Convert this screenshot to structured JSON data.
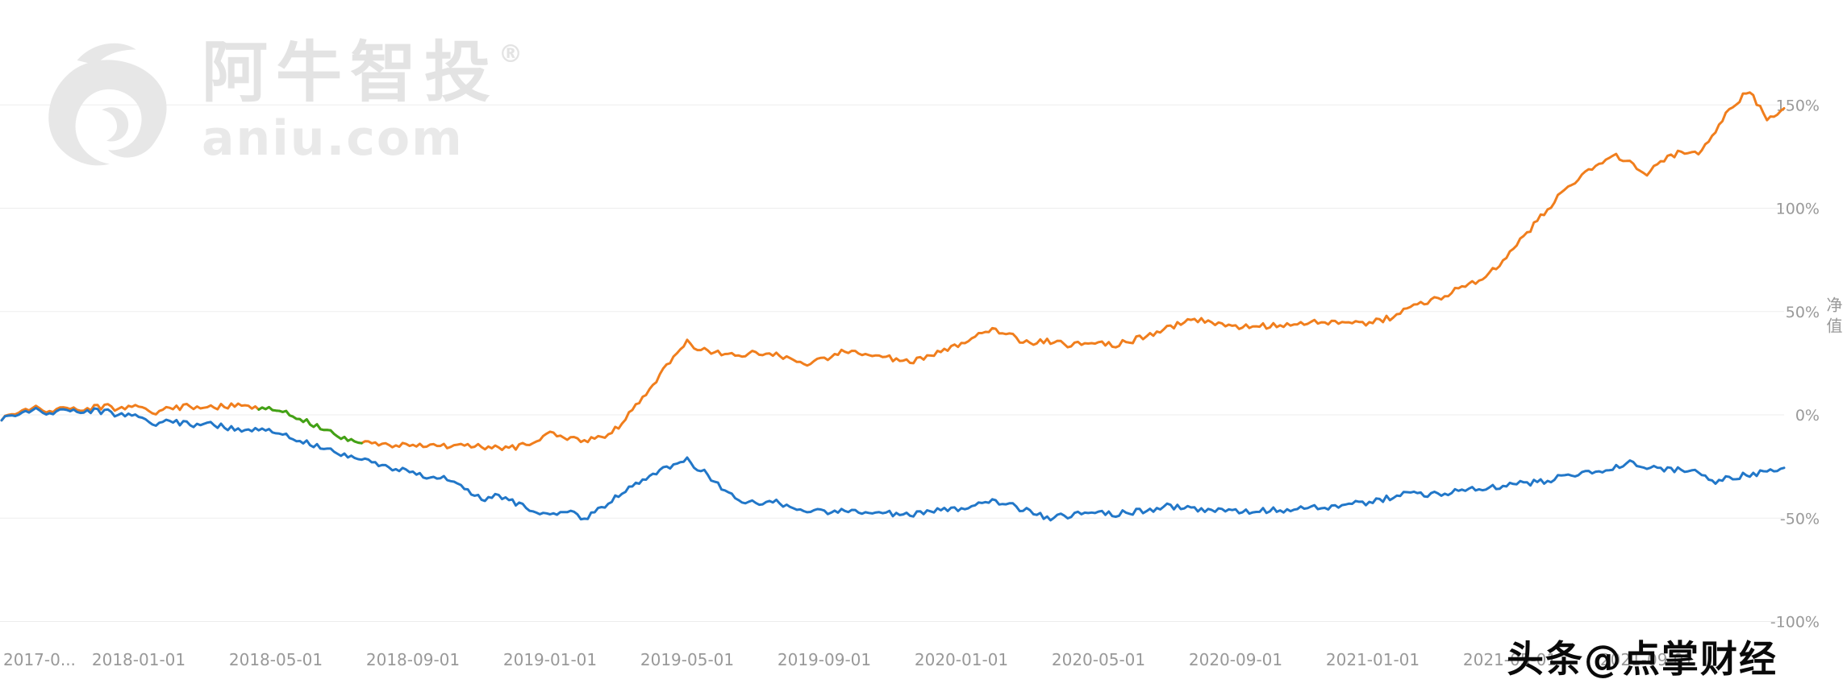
{
  "brand_watermark": {
    "name": "阿牛智投",
    "registered_mark": "®",
    "domain": "aniu.com"
  },
  "source_watermark": {
    "text": "头条@点掌财经"
  },
  "chart_data": {
    "type": "line",
    "title": "",
    "xlabel": "",
    "ylabel": "净值",
    "grid": true,
    "legend_position": "none",
    "y_axis": {
      "unit": "%",
      "range": [
        -100,
        150
      ],
      "ticks": [
        {
          "value": 150,
          "label": "150%"
        },
        {
          "value": 100,
          "label": "100%"
        },
        {
          "value": 50,
          "label": "50%"
        },
        {
          "value": 0,
          "label": "0%"
        },
        {
          "value": -50,
          "label": "-50%"
        },
        {
          "value": -100,
          "label": "-100%"
        }
      ]
    },
    "x_axis": {
      "start": "2017-09",
      "span_months": 52,
      "ticks": [
        {
          "month": 0,
          "label": "2017-0..."
        },
        {
          "month": 4,
          "label": "2018-01-01"
        },
        {
          "month": 8,
          "label": "2018-05-01"
        },
        {
          "month": 12,
          "label": "2018-09-01"
        },
        {
          "month": 16,
          "label": "2019-01-01"
        },
        {
          "month": 20,
          "label": "2019-05-01"
        },
        {
          "month": 24,
          "label": "2019-09-01"
        },
        {
          "month": 28,
          "label": "2020-01-01"
        },
        {
          "month": 32,
          "label": "2020-05-01"
        },
        {
          "month": 36,
          "label": "2020-09-01"
        },
        {
          "month": 40,
          "label": "2021-01-01"
        },
        {
          "month": 44,
          "label": "2021-05-01"
        },
        {
          "month": 48,
          "label": "2021-09-01"
        }
      ]
    },
    "series": [
      {
        "key": "strategy-net-value",
        "color": "#f07e1d",
        "x_start_month": 0,
        "x_step_months": 0.5,
        "jitter": 1.4,
        "values": [
          -2,
          1,
          3,
          2,
          3.5,
          3,
          4,
          3,
          4,
          1.5,
          3.5,
          4,
          3.5,
          4,
          4.5,
          3,
          2,
          0,
          -4,
          -8,
          -11,
          -13,
          -14,
          -14.5,
          -15,
          -15,
          -15.5,
          -15,
          -15.5,
          -16,
          -16,
          -13,
          -8,
          -12,
          -12,
          -11,
          -6,
          5,
          15,
          26,
          35,
          31,
          30,
          29,
          30,
          29,
          28,
          25,
          27,
          31,
          30,
          29,
          27,
          26,
          28,
          31,
          35,
          39,
          41,
          38,
          34,
          36,
          34,
          34,
          35,
          34,
          36,
          39,
          42,
          45,
          46,
          44,
          42,
          43,
          43,
          44,
          44,
          45,
          45,
          44,
          45,
          47,
          51,
          54,
          57,
          61,
          64,
          70,
          78,
          88,
          98,
          107,
          114,
          121,
          126,
          122,
          117,
          123,
          128,
          126,
          138,
          150,
          157,
          143,
          149
        ]
      },
      {
        "key": "empty-position-segment",
        "color": "#3fa318",
        "x_start_month": 7.5,
        "x_step_months": 0.5,
        "jitter": 1.4,
        "values": [
          3,
          2,
          0,
          -4,
          -8,
          -11,
          -13
        ]
      },
      {
        "key": "benchmark-index",
        "color": "#2277c8",
        "x_start_month": 0,
        "x_step_months": 0.5,
        "jitter": 1.4,
        "values": [
          -2,
          0,
          2,
          1,
          2.5,
          2,
          1.5,
          0,
          -1,
          -4,
          -3,
          -5,
          -4,
          -6,
          -8,
          -7,
          -9,
          -11,
          -14,
          -17,
          -19,
          -21,
          -24,
          -26,
          -28,
          -31,
          -31,
          -36,
          -41,
          -39,
          -43,
          -46,
          -48,
          -47,
          -50,
          -45,
          -39,
          -33,
          -28,
          -25,
          -22,
          -28,
          -35,
          -41,
          -43,
          -42,
          -44,
          -46,
          -47,
          -46,
          -47,
          -47,
          -48,
          -48,
          -47,
          -46,
          -45,
          -43,
          -42,
          -44,
          -47,
          -50,
          -49,
          -48,
          -47,
          -48,
          -47,
          -46,
          -44,
          -45,
          -46,
          -46,
          -47,
          -47,
          -46,
          -46,
          -45,
          -45,
          -44,
          -43,
          -42,
          -40,
          -38,
          -39,
          -38,
          -37,
          -36,
          -35,
          -34,
          -33,
          -32,
          -30,
          -29,
          -27,
          -26,
          -23,
          -25,
          -27,
          -26,
          -28,
          -32,
          -30,
          -29,
          -27,
          -25
        ]
      }
    ]
  }
}
